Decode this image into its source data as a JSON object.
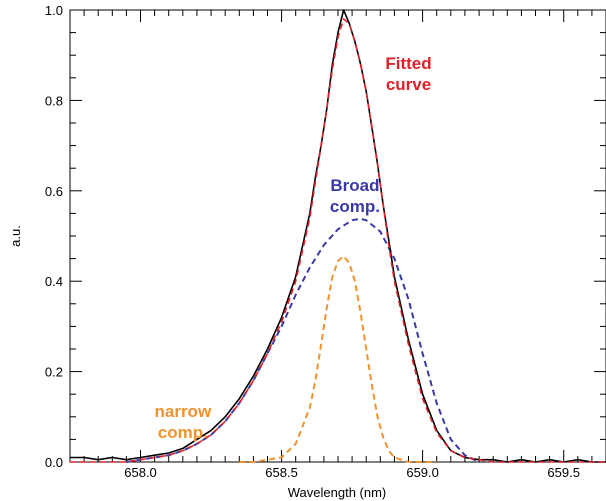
{
  "chart_data": {
    "type": "line",
    "title": "",
    "xlabel": "Wavelength (nm)",
    "ylabel": "a.u.",
    "xlim": [
      657.75,
      659.65
    ],
    "ylim": [
      0.0,
      1.0
    ],
    "grid": false,
    "x_ticks": [
      658.0,
      658.5,
      659.0,
      659.5
    ],
    "x_tick_labels": [
      "658.0",
      "658.5",
      "659.0",
      "659.5"
    ],
    "y_ticks": [
      0.0,
      0.2,
      0.4,
      0.6,
      0.8,
      1.0
    ],
    "y_tick_labels": [
      "0.0",
      "0.2",
      "0.4",
      "0.6",
      "0.8",
      "1.0"
    ],
    "annotations": [
      {
        "lines": [
          "Fitted",
          "curve"
        ],
        "color": "#e0202a",
        "x": 658.95,
        "y": 0.87
      },
      {
        "lines": [
          "Broad",
          "comp."
        ],
        "color": "#3a3aa6",
        "x": 658.76,
        "y": 0.6
      },
      {
        "lines": [
          "narrow",
          "comp."
        ],
        "color": "#f0922e",
        "x": 658.15,
        "y": 0.1
      }
    ],
    "series": [
      {
        "style": "observed",
        "color": "#000000",
        "x": [
          657.75,
          657.8,
          657.85,
          657.9,
          657.95,
          658.0,
          658.05,
          658.1,
          658.15,
          658.2,
          658.25,
          658.3,
          658.35,
          658.4,
          658.45,
          658.5,
          658.55,
          658.6,
          658.62,
          658.64,
          658.66,
          658.68,
          658.7,
          658.72,
          658.74,
          658.76,
          658.78,
          658.8,
          658.82,
          658.84,
          658.86,
          658.88,
          658.9,
          658.95,
          659.0,
          659.05,
          659.1,
          659.15,
          659.2,
          659.25,
          659.3,
          659.35,
          659.4,
          659.45,
          659.5,
          659.55,
          659.6,
          659.65
        ],
        "y": [
          0.01,
          0.01,
          0.005,
          0.01,
          0.005,
          0.01,
          0.015,
          0.02,
          0.03,
          0.05,
          0.07,
          0.1,
          0.14,
          0.19,
          0.25,
          0.32,
          0.41,
          0.55,
          0.63,
          0.7,
          0.78,
          0.88,
          0.95,
          1.0,
          0.97,
          0.93,
          0.88,
          0.82,
          0.74,
          0.66,
          0.57,
          0.49,
          0.41,
          0.27,
          0.15,
          0.07,
          0.025,
          0.01,
          0.005,
          0.005,
          0.0,
          0.005,
          0.0,
          0.005,
          0.0,
          0.005,
          0.0,
          0.0
        ]
      },
      {
        "style": "fitted",
        "color": "#e0202a",
        "x": [
          657.75,
          657.8,
          657.85,
          657.9,
          657.95,
          658.0,
          658.05,
          658.1,
          658.15,
          658.2,
          658.25,
          658.3,
          658.35,
          658.4,
          658.45,
          658.5,
          658.55,
          658.6,
          658.62,
          658.64,
          658.66,
          658.68,
          658.7,
          658.72,
          658.74,
          658.76,
          658.78,
          658.8,
          658.82,
          658.84,
          658.86,
          658.88,
          658.9,
          658.95,
          659.0,
          659.05,
          659.1,
          659.15,
          659.2,
          659.25,
          659.3,
          659.35,
          659.4,
          659.45,
          659.5,
          659.55,
          659.6,
          659.65
        ],
        "y": [
          0.0,
          0.0,
          0.0,
          0.0,
          0.0,
          0.005,
          0.01,
          0.015,
          0.025,
          0.04,
          0.06,
          0.09,
          0.13,
          0.18,
          0.24,
          0.31,
          0.4,
          0.54,
          0.62,
          0.7,
          0.78,
          0.87,
          0.94,
          0.98,
          0.97,
          0.93,
          0.88,
          0.82,
          0.74,
          0.66,
          0.57,
          0.48,
          0.4,
          0.26,
          0.14,
          0.065,
          0.025,
          0.01,
          0.005,
          0.0,
          0.0,
          0.0,
          0.0,
          0.0,
          0.0,
          0.0,
          0.0,
          0.0
        ]
      },
      {
        "style": "broad",
        "color": "#3a3aa6",
        "x": [
          657.95,
          658.0,
          658.05,
          658.1,
          658.15,
          658.2,
          658.25,
          658.3,
          658.35,
          658.4,
          658.45,
          658.5,
          658.55,
          658.6,
          658.65,
          658.7,
          658.75,
          658.78,
          658.8,
          658.85,
          658.9,
          658.95,
          659.0,
          659.05,
          659.1,
          659.15,
          659.2
        ],
        "y": [
          0.0,
          0.005,
          0.01,
          0.015,
          0.025,
          0.04,
          0.06,
          0.09,
          0.13,
          0.18,
          0.24,
          0.3,
          0.37,
          0.43,
          0.48,
          0.515,
          0.535,
          0.538,
          0.535,
          0.51,
          0.45,
          0.36,
          0.24,
          0.13,
          0.05,
          0.015,
          0.0
        ]
      },
      {
        "style": "narrow",
        "color": "#f0922e",
        "x": [
          658.35,
          658.4,
          658.45,
          658.5,
          658.55,
          658.6,
          658.62,
          658.64,
          658.66,
          658.68,
          658.7,
          658.72,
          658.74,
          658.76,
          658.78,
          658.8,
          658.82,
          658.84,
          658.86,
          658.88,
          658.9,
          658.95,
          659.0,
          659.05
        ],
        "y": [
          0.0,
          0.0,
          0.005,
          0.01,
          0.04,
          0.12,
          0.18,
          0.26,
          0.34,
          0.41,
          0.445,
          0.455,
          0.44,
          0.4,
          0.33,
          0.25,
          0.17,
          0.1,
          0.055,
          0.025,
          0.01,
          0.0,
          0.0,
          0.0
        ]
      }
    ]
  }
}
